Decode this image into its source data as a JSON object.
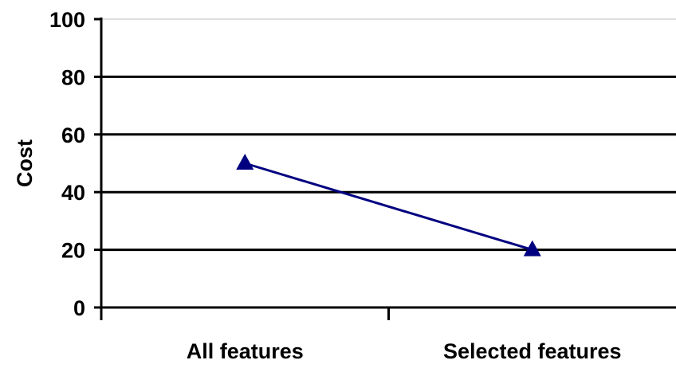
{
  "chart_data": {
    "type": "line",
    "title": "",
    "xlabel": "",
    "ylabel": "Cost",
    "categories": [
      "All features",
      "Selected features"
    ],
    "series": [
      {
        "values": [
          50,
          20
        ],
        "color": "#000080",
        "marker": "triangle"
      }
    ],
    "ylim": [
      0,
      100
    ],
    "yticks": [
      0,
      20,
      40,
      60,
      80,
      100
    ],
    "grid": true,
    "legend": "none"
  }
}
